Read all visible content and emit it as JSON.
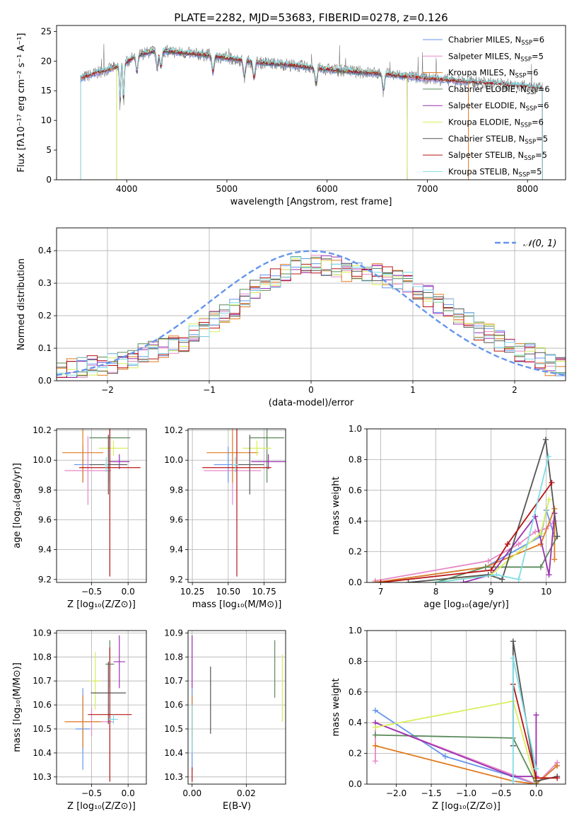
{
  "figure": {
    "title": "PLATE=2282, MJD=53683, FIBERID=0278, z=0.126"
  },
  "colors": {
    "Chabrier_MILES": "#6495ed",
    "Salpeter_MILES": "#e589c8",
    "Kroupa_MILES": "#e07b1f",
    "Chabrier_ELODIE": "#5a8a5a",
    "Salpeter_ELODIE": "#9b30b0",
    "Kroupa_ELODIE": "#d8ee5a",
    "Chabrier_STELIB": "#555555",
    "Salpeter_STELIB": "#b81414",
    "Kroupa_STELIB": "#7fdde6",
    "grid": "#b0b0b0",
    "normal_curve": "#6495ed"
  },
  "chart_data": [
    {
      "id": "spectrum",
      "type": "line",
      "title": "PLATE=2282, MJD=53683, FIBERID=0278, z=0.126",
      "xlabel": "wavelength [Angstrom, rest frame]",
      "ylabel": "Flux [fλ10⁻¹⁷ erg cm⁻² s⁻¹ A⁻¹]",
      "xlim": [
        3300,
        8380
      ],
      "ylim": [
        0,
        26
      ],
      "x_ticks": [
        4000,
        5000,
        6000,
        7000,
        8000
      ],
      "y_ticks": [
        0,
        5,
        10,
        15,
        20,
        25
      ],
      "grid": false,
      "legend_position": "top-right",
      "legend": [
        {
          "label": "Chabrier MILES, N",
          "sub": "SSP",
          "tail": "=6",
          "key": "Chabrier_MILES"
        },
        {
          "label": "Salpeter MILES, N",
          "sub": "SSP",
          "tail": "=5",
          "key": "Salpeter_MILES"
        },
        {
          "label": "Kroupa MILES, N",
          "sub": "SSP",
          "tail": "=6",
          "key": "Kroupa_MILES"
        },
        {
          "label": "Chabrier ELODIE, N",
          "sub": "SSP",
          "tail": "=6",
          "key": "Chabrier_ELODIE"
        },
        {
          "label": "Salpeter ELODIE, N",
          "sub": "SSP",
          "tail": "=6",
          "key": "Salpeter_ELODIE"
        },
        {
          "label": "Kroupa ELODIE, N",
          "sub": "SSP",
          "tail": "=6",
          "key": "Kroupa_ELODIE"
        },
        {
          "label": "Chabrier STELIB, N",
          "sub": "SSP",
          "tail": "=5",
          "key": "Chabrier_STELIB"
        },
        {
          "label": "Salpeter STELIB, N",
          "sub": "SSP",
          "tail": "=5",
          "key": "Salpeter_STELIB"
        },
        {
          "label": "Kroupa STELIB, N",
          "sub": "SSP",
          "tail": "=5",
          "key": "Kroupa_STELIB"
        }
      ],
      "continuum": {
        "x": [
          3520,
          3700,
          3900,
          4000,
          4100,
          4300,
          4500,
          4800,
          5000,
          5300,
          5600,
          6000,
          6300,
          6600,
          6900,
          7200,
          7500,
          7800,
          8100
        ],
        "y": [
          17.0,
          18.0,
          19.0,
          19.8,
          21.0,
          21.8,
          21.5,
          21.0,
          20.5,
          19.8,
          19.4,
          18.6,
          18.2,
          17.8,
          17.2,
          16.8,
          16.4,
          16.0,
          15.5
        ]
      },
      "absorption_lines": [
        3934,
        3969,
        4102,
        4304,
        4341,
        4861,
        5175,
        5270,
        5890,
        6563
      ],
      "model_ranges": {
        "MILES": [
          3540,
          7410
        ],
        "ELODIE": [
          3900,
          6800
        ],
        "STELIB": [
          3540,
          8150
        ]
      }
    },
    {
      "id": "residual_histogram",
      "type": "histogram",
      "xlabel": "(data-model)/error",
      "ylabel": "Normed distribution",
      "xlim": [
        -2.5,
        2.5
      ],
      "ylim": [
        0,
        0.47
      ],
      "x_ticks": [
        -2,
        -1,
        0,
        1,
        2
      ],
      "y_ticks": [
        0.0,
        0.1,
        0.2,
        0.3,
        0.4
      ],
      "grid": true,
      "legend_position": "top-right",
      "normal_label": "𝒩(0, 1)",
      "bin_edges_start": -2.5,
      "bin_width": 0.1,
      "base_heights": [
        0.03,
        0.035,
        0.04,
        0.045,
        0.05,
        0.055,
        0.06,
        0.07,
        0.08,
        0.09,
        0.1,
        0.11,
        0.12,
        0.14,
        0.16,
        0.18,
        0.2,
        0.22,
        0.25,
        0.28,
        0.3,
        0.32,
        0.34,
        0.35,
        0.36,
        0.36,
        0.35,
        0.35,
        0.34,
        0.34,
        0.33,
        0.33,
        0.32,
        0.31,
        0.3,
        0.28,
        0.26,
        0.24,
        0.22,
        0.2,
        0.18,
        0.16,
        0.14,
        0.12,
        0.1,
        0.09,
        0.08,
        0.07,
        0.05,
        0.04
      ]
    },
    {
      "id": "age_vs_metallicity",
      "type": "scatter",
      "xlabel": "Z [log₁₀(Z/Z⊙)]",
      "ylabel": "age  [log₁₀(age/yr)]",
      "xlim": [
        -0.98,
        0.25
      ],
      "ylim": [
        9.18,
        10.21
      ],
      "x_ticks": [
        -0.5,
        0.0
      ],
      "y_ticks": [
        9.2,
        9.4,
        9.6,
        9.8,
        10.0,
        10.2
      ],
      "grid": true,
      "points": [
        {
          "key": "Chabrier_MILES",
          "x": -0.62,
          "xerr": 0.12,
          "y": 9.97,
          "yerr": 0.12
        },
        {
          "key": "Salpeter_MILES",
          "x": -0.55,
          "xerr": 0.32,
          "y": 9.93,
          "yerr": 0.23
        },
        {
          "key": "Kroupa_MILES",
          "x": -0.62,
          "xerr": 0.28,
          "y": 10.05,
          "yerr": 0.2
        },
        {
          "key": "Chabrier_ELODIE",
          "x": -0.25,
          "xerr": 0.28,
          "y": 10.15,
          "yerr": 0.3
        },
        {
          "key": "Salpeter_ELODIE",
          "x": -0.12,
          "xerr": 0.14,
          "y": 9.99,
          "yerr": 0.05
        },
        {
          "key": "Kroupa_ELODIE",
          "x": -0.2,
          "xerr": 0.2,
          "y": 10.08,
          "yerr": 0.05
        },
        {
          "key": "Chabrier_STELIB",
          "x": -0.27,
          "xerr": 0.26,
          "y": 9.97,
          "yerr": 0.2
        },
        {
          "key": "Salpeter_STELIB",
          "x": -0.25,
          "xerr": 0.42,
          "y": 9.95,
          "yerr": 0.73
        },
        {
          "key": "Kroupa_STELIB",
          "x": -0.3,
          "xerr": 0.02,
          "y": 9.97,
          "yerr": 0.05
        }
      ]
    },
    {
      "id": "age_vs_mass",
      "type": "scatter",
      "xlabel": "mass [log₁₀(M/M⊙)]",
      "ylabel": "",
      "xlim": [
        10.22,
        10.9
      ],
      "ylim": [
        9.18,
        10.21
      ],
      "x_ticks": [
        10.25,
        10.5,
        10.75
      ],
      "y_ticks": [
        9.2,
        9.4,
        9.6,
        9.8,
        10.0,
        10.2
      ],
      "grid": true,
      "points": [
        {
          "key": "Chabrier_MILES",
          "x": 10.5,
          "xerr": 0.1,
          "y": 9.97,
          "yerr": 0.12
        },
        {
          "key": "Salpeter_MILES",
          "x": 10.53,
          "xerr": 0.2,
          "y": 9.93,
          "yerr": 0.23
        },
        {
          "key": "Kroupa_MILES",
          "x": 10.53,
          "xerr": 0.18,
          "y": 10.05,
          "yerr": 0.2
        },
        {
          "key": "Chabrier_ELODIE",
          "x": 10.77,
          "xerr": 0.12,
          "y": 10.15,
          "yerr": 0.3
        },
        {
          "key": "Salpeter_ELODIE",
          "x": 10.78,
          "xerr": 0.12,
          "y": 9.99,
          "yerr": 0.05
        },
        {
          "key": "Kroupa_ELODIE",
          "x": 10.7,
          "xerr": 0.1,
          "y": 10.08,
          "yerr": 0.05
        },
        {
          "key": "Chabrier_STELIB",
          "x": 10.65,
          "xerr": 0.1,
          "y": 9.97,
          "yerr": 0.2
        },
        {
          "key": "Salpeter_STELIB",
          "x": 10.56,
          "xerr": 0.24,
          "y": 9.95,
          "yerr": 0.73
        },
        {
          "key": "Kroupa_STELIB",
          "x": 10.55,
          "xerr": 0.02,
          "y": 9.97,
          "yerr": 0.05
        }
      ]
    },
    {
      "id": "mass_weight_vs_age",
      "type": "line",
      "xlabel": "age  [log₁₀(age/yr)]",
      "ylabel": "mass weight",
      "xlim": [
        6.75,
        10.35
      ],
      "ylim": [
        0,
        1.0
      ],
      "x_ticks": [
        7,
        8,
        9,
        10
      ],
      "y_ticks": [
        0.0,
        0.2,
        0.4,
        0.6,
        0.8,
        1.0
      ],
      "grid": true,
      "series": [
        {
          "key": "Chabrier_MILES",
          "x": [
            6.9,
            8.9,
            9.9,
            10.0,
            10.15
          ],
          "y": [
            0.0,
            0.1,
            0.3,
            0.47,
            0.3
          ]
        },
        {
          "key": "Salpeter_MILES",
          "x": [
            6.9,
            8.95,
            9.5,
            9.8,
            10.0,
            10.15
          ],
          "y": [
            0.01,
            0.14,
            0.25,
            0.33,
            0.35,
            0.4
          ]
        },
        {
          "key": "Kroupa_MILES",
          "x": [
            6.9,
            8.9,
            9.9,
            10.15,
            10.15
          ],
          "y": [
            0.0,
            0.1,
            0.25,
            0.48,
            0.15
          ]
        },
        {
          "key": "Chabrier_ELODIE",
          "x": [
            8.0,
            8.9,
            9.9,
            10.2
          ],
          "y": [
            0.0,
            0.1,
            0.1,
            0.3
          ]
        },
        {
          "key": "Salpeter_ELODIE",
          "x": [
            8.5,
            9.0,
            9.8,
            10.05,
            10.15
          ],
          "y": [
            0.0,
            0.05,
            0.43,
            0.05,
            0.45
          ]
        },
        {
          "key": "Kroupa_ELODIE",
          "x": [
            8.0,
            9.0,
            9.9,
            10.05
          ],
          "y": [
            0.0,
            0.05,
            0.32,
            0.54
          ]
        },
        {
          "key": "Chabrier_STELIB",
          "x": [
            7.5,
            8.95,
            9.2,
            9.99,
            10.2
          ],
          "y": [
            0.0,
            0.05,
            0.02,
            0.93,
            0.3
          ]
        },
        {
          "key": "Salpeter_STELIB",
          "x": [
            7.0,
            9.0,
            9.3,
            10.1
          ],
          "y": [
            0.0,
            0.08,
            0.25,
            0.65
          ]
        },
        {
          "key": "Kroupa_STELIB",
          "x": [
            8.0,
            9.1,
            9.5,
            10.04
          ],
          "y": [
            0.0,
            0.05,
            0.02,
            0.82
          ]
        }
      ]
    },
    {
      "id": "mass_vs_metallicity",
      "type": "scatter",
      "xlabel": "Z [log₁₀(Z/Z⊙)]",
      "ylabel": "mass [log₁₀(M/M⊙)]",
      "xlim": [
        -0.98,
        0.25
      ],
      "ylim": [
        10.27,
        10.91
      ],
      "x_ticks": [
        -0.5,
        0.0
      ],
      "y_ticks": [
        10.3,
        10.4,
        10.5,
        10.6,
        10.7,
        10.8,
        10.9
      ],
      "grid": true,
      "points": [
        {
          "key": "Chabrier_MILES",
          "x": -0.62,
          "xerr": 0.1,
          "y": 10.5,
          "yerr": 0.17
        },
        {
          "key": "Salpeter_MILES",
          "x": -0.5,
          "xerr": 0.3,
          "y": 10.53,
          "yerr": 0.06
        },
        {
          "key": "Kroupa_MILES",
          "x": -0.62,
          "xerr": 0.25,
          "y": 10.53,
          "yerr": 0.11
        },
        {
          "key": "Chabrier_ELODIE",
          "x": -0.25,
          "xerr": 0.06,
          "y": 10.77,
          "yerr": 0.1
        },
        {
          "key": "Salpeter_ELODIE",
          "x": -0.12,
          "xerr": 0.08,
          "y": 10.78,
          "yerr": 0.11
        },
        {
          "key": "Kroupa_ELODIE",
          "x": -0.45,
          "xerr": 0.08,
          "y": 10.7,
          "yerr": 0.12
        },
        {
          "key": "Chabrier_STELIB",
          "x": -0.27,
          "xerr": 0.24,
          "y": 10.65,
          "yerr": 0.13
        },
        {
          "key": "Salpeter_STELIB",
          "x": -0.25,
          "xerr": 0.3,
          "y": 10.56,
          "yerr": 0.28
        },
        {
          "key": "Kroupa_STELIB",
          "x": -0.2,
          "xerr": 0.06,
          "y": 10.54,
          "yerr": 0.02
        }
      ]
    },
    {
      "id": "mass_vs_ebv",
      "type": "scatter",
      "xlabel": "E(B-V)",
      "ylabel": "",
      "xlim": [
        -0.0015,
        0.0345
      ],
      "ylim": [
        10.27,
        10.91
      ],
      "x_ticks": [
        0.0,
        0.02
      ],
      "y_ticks": [
        10.3,
        10.4,
        10.5,
        10.6,
        10.7,
        10.8,
        10.9
      ],
      "grid": true,
      "points": [
        {
          "key": "Chabrier_MILES",
          "x": 0.0,
          "xerr": 0,
          "y": 10.5,
          "yerr": 0.17
        },
        {
          "key": "Salpeter_MILES",
          "x": 0.0,
          "xerr": 0,
          "y": 10.53,
          "yerr": 0.06
        },
        {
          "key": "Kroupa_MILES",
          "x": 0.0,
          "xerr": 0,
          "y": 10.53,
          "yerr": 0.11
        },
        {
          "key": "Chabrier_ELODIE",
          "x": 0.0305,
          "xerr": 0,
          "y": 10.75,
          "yerr": 0.12
        },
        {
          "key": "Salpeter_ELODIE",
          "x": 0.0,
          "xerr": 0,
          "y": 10.78,
          "yerr": 0.11
        },
        {
          "key": "Kroupa_ELODIE",
          "x": 0.0333,
          "xerr": 0,
          "y": 10.67,
          "yerr": 0.14
        },
        {
          "key": "Chabrier_STELIB",
          "x": 0.0068,
          "xerr": 0,
          "y": 10.62,
          "yerr": 0.14
        },
        {
          "key": "Salpeter_STELIB",
          "x": 0.0,
          "xerr": 0,
          "y": 10.31,
          "yerr": 0.03
        },
        {
          "key": "Kroupa_STELIB",
          "x": 0.0,
          "xerr": 0,
          "y": 10.5,
          "yerr": 0.1
        }
      ]
    },
    {
      "id": "mass_weight_vs_metallicity",
      "type": "line",
      "xlabel": "Z [log₁₀(Z/Z⊙)]",
      "ylabel": "mass weight",
      "xlim": [
        -2.42,
        0.42
      ],
      "ylim": [
        0,
        1.0
      ],
      "x_ticks": [
        -2.0,
        -1.5,
        -1.0,
        -0.5,
        0.0
      ],
      "y_ticks": [
        0.0,
        0.2,
        0.4,
        0.6,
        0.8,
        1.0
      ],
      "grid": true,
      "series": [
        {
          "key": "Chabrier_MILES",
          "x": [
            -2.3,
            -1.3,
            -0.33,
            0.0,
            0.3
          ],
          "y": [
            0.48,
            0.18,
            0.05,
            0.0,
            0.12
          ]
        },
        {
          "key": "Salpeter_MILES",
          "x": [
            -2.3,
            -2.3,
            -0.33,
            0.0,
            0.3
          ],
          "y": [
            0.15,
            0.4,
            0.06,
            0.0,
            0.14
          ]
        },
        {
          "key": "Kroupa_MILES",
          "x": [
            -2.3,
            -0.33,
            0.0,
            0.3
          ],
          "y": [
            0.25,
            0.02,
            0.0,
            0.12
          ]
        },
        {
          "key": "Chabrier_ELODIE",
          "x": [
            -2.3,
            -0.33,
            0.0
          ],
          "y": [
            0.32,
            0.3,
            0.0
          ]
        },
        {
          "key": "Salpeter_ELODIE",
          "x": [
            -2.3,
            -0.33,
            0.0,
            0.0
          ],
          "y": [
            0.4,
            0.05,
            0.05,
            0.45
          ]
        },
        {
          "key": "Kroupa_ELODIE",
          "x": [
            -2.3,
            -0.33,
            0.0
          ],
          "y": [
            0.37,
            0.54,
            0.0
          ]
        },
        {
          "key": "Chabrier_STELIB",
          "x": [
            -0.33,
            -0.33,
            0.0,
            0.3
          ],
          "y": [
            0.25,
            0.93,
            0.02,
            0.05
          ]
        },
        {
          "key": "Salpeter_STELIB",
          "x": [
            -0.33,
            0.0,
            0.3
          ],
          "y": [
            0.65,
            0.04,
            0.04
          ]
        },
        {
          "key": "Kroupa_STELIB",
          "x": [
            -0.33,
            -0.33,
            0.0
          ],
          "y": [
            0.02,
            0.82,
            0.1
          ]
        }
      ]
    }
  ]
}
